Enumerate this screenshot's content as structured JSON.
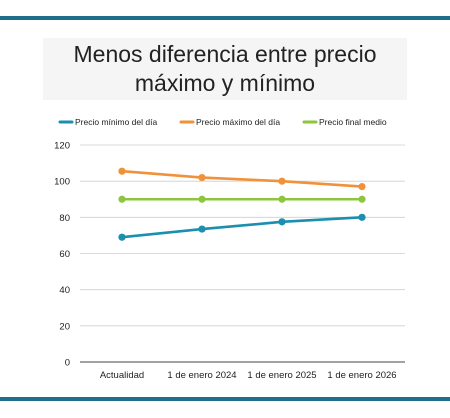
{
  "colors": {
    "frame": "#1f6e8c",
    "grid": "#cfcfcf",
    "axis": "#444444"
  },
  "chart_data": {
    "type": "line",
    "title_lines": [
      "Menos diferencia entre precio",
      "máximo y mínimo"
    ],
    "categories": [
      "Actualidad",
      "1 de enero 2024",
      "1 de enero 2025",
      "1 de enero 2026"
    ],
    "series": [
      {
        "name": "Precio mínimo del día",
        "color": "#1a8faf",
        "values": [
          69,
          73.5,
          77.5,
          80
        ]
      },
      {
        "name": "Precio máximo del día",
        "color": "#f0923a",
        "values": [
          105.5,
          102,
          100,
          97
        ]
      },
      {
        "name": "Precio final medio",
        "color": "#8cc63f",
        "values": [
          90,
          90,
          90,
          90
        ]
      }
    ],
    "ylim": [
      0,
      120
    ],
    "yticks": [
      0,
      20,
      40,
      60,
      80,
      100,
      120
    ],
    "grid": true,
    "legend_position": "top"
  }
}
